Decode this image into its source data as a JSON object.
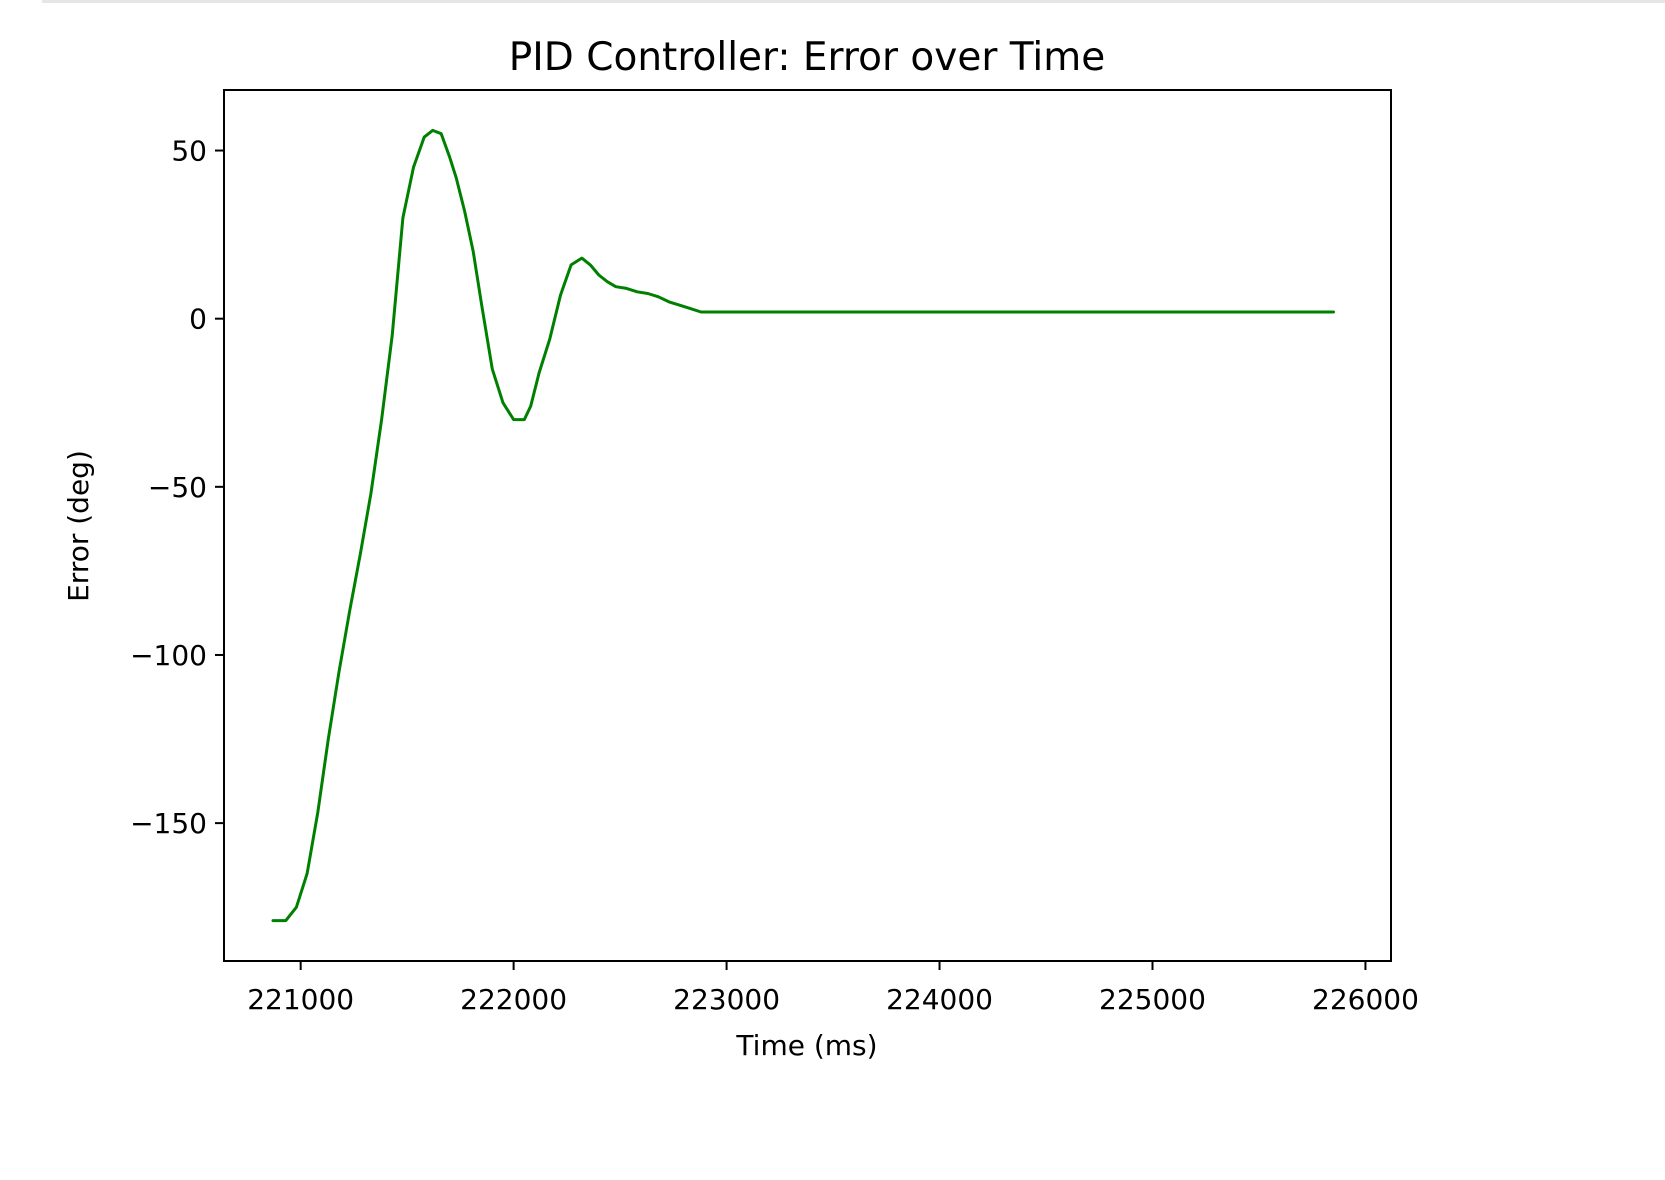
{
  "chart_data": {
    "type": "line",
    "title": "PID Controller: Error over Time",
    "xlabel": "Time (ms)",
    "ylabel": "Error (deg)",
    "xlim": [
      220640,
      226120
    ],
    "ylim": [
      -191,
      68
    ],
    "x_ticks": [
      221000,
      222000,
      223000,
      224000,
      225000,
      226000
    ],
    "x_tick_labels": [
      "221000",
      "222000",
      "223000",
      "224000",
      "225000",
      "226000"
    ],
    "y_ticks": [
      50,
      0,
      -50,
      -100,
      -150
    ],
    "y_tick_labels": [
      "50",
      "0",
      "−50",
      "−100",
      "−150"
    ],
    "grid": false,
    "series": [
      {
        "color": "#008000",
        "x": [
          220870,
          220930,
          220980,
          221030,
          221080,
          221130,
          221180,
          221230,
          221280,
          221330,
          221380,
          221430,
          221480,
          221530,
          221580,
          221620,
          221660,
          221700,
          221730,
          221770,
          221810,
          221850,
          221900,
          221950,
          222000,
          222050,
          222080,
          222120,
          222170,
          222220,
          222270,
          222320,
          222360,
          222400,
          222440,
          222480,
          222530,
          222580,
          222630,
          222680,
          222730,
          222780,
          222830,
          222880,
          222920,
          222960,
          223000,
          223500,
          224000,
          224500,
          225000,
          225500,
          225850
        ],
        "y": [
          -179,
          -179,
          -175,
          -165,
          -147,
          -125,
          -105,
          -87,
          -70,
          -52,
          -30,
          -5,
          30,
          45,
          54,
          56,
          55,
          48,
          42,
          32,
          20,
          4,
          -15,
          -25,
          -30,
          -30,
          -26,
          -16,
          -6,
          7,
          16,
          18,
          16,
          13,
          11,
          9.5,
          9,
          8,
          7.5,
          6.5,
          5,
          4,
          3,
          2,
          2,
          2,
          2,
          2,
          2,
          2,
          2,
          2,
          2
        ]
      }
    ]
  }
}
